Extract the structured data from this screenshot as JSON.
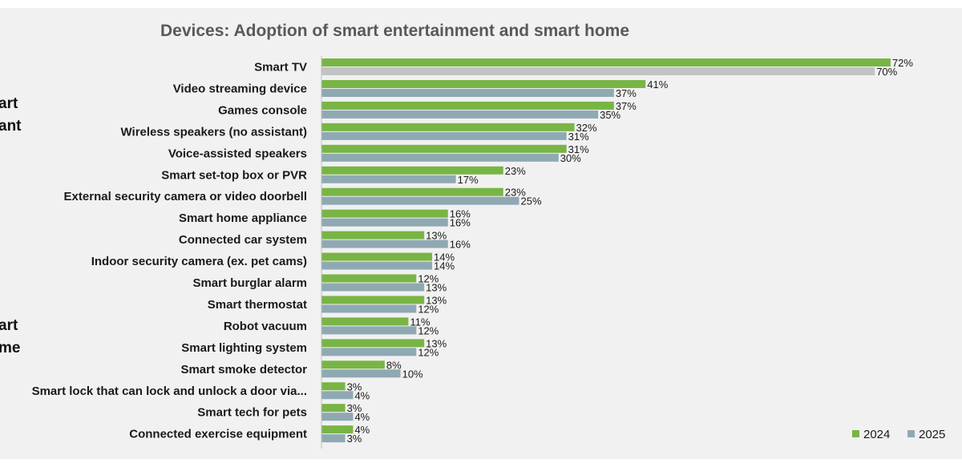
{
  "group_labels": {
    "entertainment": [
      "art",
      "ant"
    ],
    "home": [
      "art",
      "me"
    ]
  },
  "colors": {
    "series_2024": "#78b545",
    "series_2025": "#8fa9b3",
    "smart_tv_2025": "#c3c3c3",
    "axis": "#bfbfbf"
  },
  "chart_data": {
    "type": "bar",
    "orientation": "horizontal",
    "title": "Devices: Adoption of smart entertainment and smart home",
    "value_suffix": "%",
    "legend_position": "bottom-right",
    "categories": [
      "Smart TV",
      "Video streaming device",
      "Games console",
      "Wireless speakers (no assistant)",
      "Voice-assisted speakers",
      "Smart set-top box or PVR",
      "External security camera or video doorbell",
      "Smart home appliance",
      "Connected car system",
      "Indoor security camera (ex. pet cams)",
      "Smart burglar alarm",
      "Smart thermostat",
      "Robot vacuum",
      "Smart lighting system",
      "Smart smoke detector",
      "Smart lock that can lock and unlock a door via...",
      "Smart tech for pets",
      "Connected exercise equipment"
    ],
    "series": [
      {
        "name": "2024",
        "values": [
          72,
          41,
          37,
          32,
          31,
          23,
          23,
          16,
          13,
          14,
          12,
          13,
          11,
          13,
          8,
          3,
          3,
          4
        ]
      },
      {
        "name": "2025",
        "values": [
          70,
          37,
          35,
          31,
          30,
          17,
          25,
          16,
          16,
          14,
          13,
          12,
          12,
          12,
          10,
          4,
          4,
          3
        ]
      }
    ]
  }
}
